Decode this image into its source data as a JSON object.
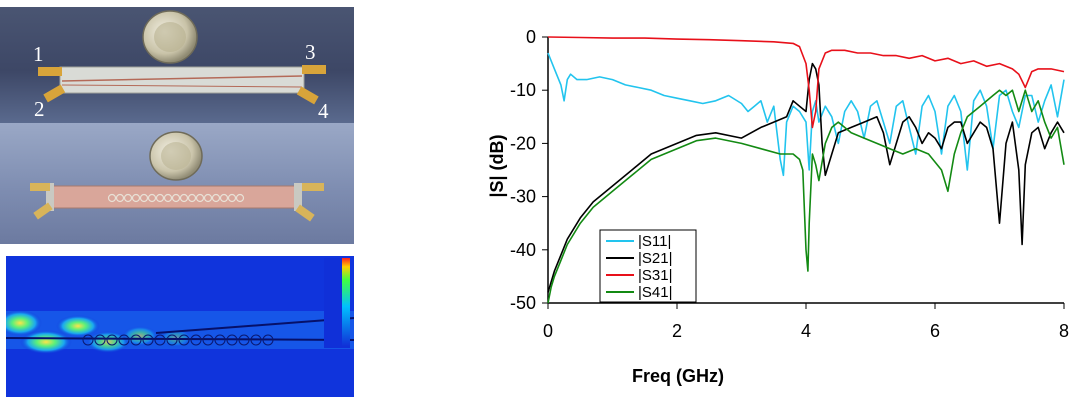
{
  "photos": {
    "port_labels": [
      "1",
      "2",
      "3",
      "4"
    ]
  },
  "chart_data": {
    "type": "line",
    "title": "",
    "xlabel": "Freq (GHz)",
    "ylabel": "|S| (dB)",
    "xlim": [
      0,
      8
    ],
    "ylim": [
      -50,
      0
    ],
    "x_ticks": [
      0,
      2,
      4,
      6,
      8
    ],
    "y_ticks": [
      0,
      -10,
      -20,
      -30,
      -40,
      -50
    ],
    "grid": false,
    "legend_position": "bottom-left",
    "series": [
      {
        "name": "|S11|",
        "color": "#22c4ee",
        "x": [
          0,
          0.1,
          0.2,
          0.25,
          0.3,
          0.35,
          0.45,
          0.6,
          0.8,
          1.0,
          1.2,
          1.4,
          1.6,
          1.8,
          2.0,
          2.2,
          2.4,
          2.6,
          2.8,
          3.0,
          3.1,
          3.2,
          3.3,
          3.4,
          3.5,
          3.6,
          3.65,
          3.7,
          3.8,
          3.9,
          4.0,
          4.05,
          4.1,
          4.15,
          4.2,
          4.3,
          4.4,
          4.5,
          4.6,
          4.7,
          4.8,
          4.9,
          5.0,
          5.1,
          5.2,
          5.3,
          5.4,
          5.5,
          5.6,
          5.7,
          5.8,
          5.9,
          6.0,
          6.1,
          6.2,
          6.3,
          6.4,
          6.5,
          6.6,
          6.7,
          6.8,
          6.9,
          7.0,
          7.1,
          7.2,
          7.3,
          7.4,
          7.5,
          7.6,
          7.7,
          7.8,
          7.9,
          8.0
        ],
        "y": [
          -3,
          -6,
          -9,
          -12,
          -8,
          -7,
          -8,
          -8,
          -7.5,
          -8,
          -9,
          -9.5,
          -10,
          -11,
          -11.5,
          -12,
          -12.5,
          -12,
          -11,
          -12.5,
          -14,
          -13,
          -12,
          -16,
          -13,
          -23,
          -26,
          -16,
          -13,
          -14,
          -16,
          -25,
          -14,
          -12,
          -16,
          -13,
          -15,
          -20,
          -14,
          -12,
          -14,
          -19,
          -13,
          -12,
          -16,
          -20,
          -13,
          -12,
          -17,
          -22,
          -13,
          -11,
          -14,
          -22,
          -13,
          -11,
          -14,
          -25,
          -12,
          -10,
          -13,
          -21,
          -11,
          -10,
          -14,
          -17,
          -11,
          -11,
          -16,
          -12,
          -9,
          -15,
          -8
        ]
      },
      {
        "name": "|S21|",
        "color": "#000000",
        "x": [
          0,
          0.05,
          0.1,
          0.2,
          0.3,
          0.5,
          0.7,
          1.0,
          1.3,
          1.6,
          2.0,
          2.3,
          2.6,
          3.0,
          3.3,
          3.5,
          3.7,
          3.8,
          3.9,
          4.0,
          4.05,
          4.1,
          4.15,
          4.2,
          4.25,
          4.3,
          4.4,
          4.5,
          4.7,
          4.9,
          5.1,
          5.2,
          5.3,
          5.4,
          5.5,
          5.6,
          5.7,
          5.8,
          5.9,
          6.0,
          6.1,
          6.2,
          6.3,
          6.4,
          6.5,
          6.6,
          6.7,
          6.8,
          6.9,
          7.0,
          7.1,
          7.2,
          7.3,
          7.35,
          7.4,
          7.5,
          7.6,
          7.7,
          7.8,
          7.9,
          8.0
        ],
        "y": [
          -48,
          -46,
          -44,
          -41,
          -38,
          -34,
          -31,
          -28,
          -25,
          -22,
          -20,
          -18.5,
          -18,
          -19,
          -17,
          -16,
          -15,
          -12,
          -13,
          -14,
          -8,
          -5,
          -6,
          -9,
          -20,
          -26,
          -22,
          -18,
          -17,
          -16,
          -15,
          -18,
          -24,
          -20,
          -16,
          -15,
          -17,
          -20,
          -18,
          -19,
          -21,
          -17,
          -16,
          -16,
          -20,
          -18,
          -16,
          -17,
          -21,
          -35,
          -20,
          -16,
          -25,
          -39,
          -24,
          -18,
          -17,
          -21,
          -18,
          -16,
          -18
        ]
      },
      {
        "name": "|S31|",
        "color": "#e8101a",
        "x": [
          0,
          0.5,
          1.0,
          1.5,
          2.0,
          2.5,
          3.0,
          3.5,
          3.8,
          3.9,
          4.0,
          4.05,
          4.1,
          4.15,
          4.2,
          4.3,
          4.4,
          4.6,
          4.8,
          5.0,
          5.2,
          5.4,
          5.6,
          5.8,
          6.0,
          6.2,
          6.4,
          6.6,
          6.8,
          7.0,
          7.2,
          7.3,
          7.4,
          7.5,
          7.6,
          7.8,
          8.0
        ],
        "y": [
          0,
          -0.1,
          -0.2,
          -0.2,
          -0.4,
          -0.5,
          -0.7,
          -0.9,
          -1.2,
          -1.8,
          -5,
          -10,
          -17,
          -14,
          -6,
          -3,
          -2.5,
          -2.5,
          -3,
          -3,
          -3.5,
          -3.5,
          -4,
          -3.5,
          -4.5,
          -4,
          -5,
          -4.5,
          -5.5,
          -5,
          -6,
          -7,
          -9.5,
          -6.5,
          -6,
          -6,
          -6.5
        ]
      },
      {
        "name": "|S41|",
        "color": "#138a13",
        "x": [
          0,
          0.05,
          0.1,
          0.2,
          0.3,
          0.5,
          0.7,
          1.0,
          1.3,
          1.6,
          2.0,
          2.3,
          2.6,
          3.0,
          3.3,
          3.6,
          3.8,
          3.9,
          3.95,
          4.0,
          4.03,
          4.05,
          4.1,
          4.15,
          4.2,
          4.3,
          4.4,
          4.5,
          4.7,
          4.9,
          5.1,
          5.3,
          5.5,
          5.7,
          5.9,
          6.1,
          6.2,
          6.3,
          6.4,
          6.5,
          6.7,
          6.9,
          7.0,
          7.1,
          7.2,
          7.3,
          7.4,
          7.5,
          7.6,
          7.7,
          7.8,
          7.9,
          8.0
        ],
        "y": [
          -50,
          -47,
          -45,
          -42,
          -39,
          -35,
          -32,
          -29,
          -26,
          -23,
          -21,
          -19.5,
          -19,
          -20,
          -21,
          -22,
          -22,
          -23,
          -25,
          -40,
          -44,
          -35,
          -22,
          -24,
          -27,
          -20,
          -17,
          -16,
          -18,
          -19,
          -20,
          -21,
          -22,
          -21,
          -22,
          -25,
          -29,
          -22,
          -18,
          -15,
          -13,
          -11,
          -10,
          -11,
          -10,
          -14,
          -10,
          -14,
          -12,
          -16,
          -19,
          -17,
          -24
        ]
      }
    ]
  }
}
